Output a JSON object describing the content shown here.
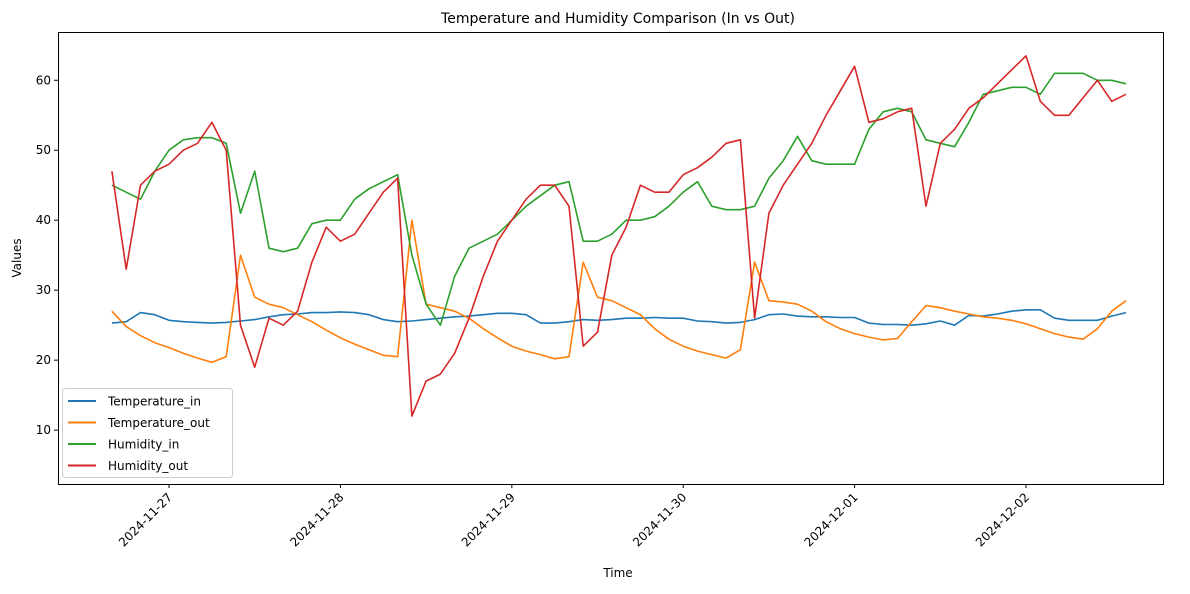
{
  "chart_data": {
    "type": "line",
    "title": "Temperature and Humidity Comparison (In vs Out)",
    "xlabel": "Time",
    "ylabel": "Values",
    "xlim": [
      "2024-11-26T08:27",
      "2024-12-02T19:11"
    ],
    "ylim": [
      2.3,
      66.9
    ],
    "x_ticks": [
      "2024-11-27",
      "2024-11-28",
      "2024-11-29",
      "2024-11-30",
      "2024-12-01",
      "2024-12-02"
    ],
    "y_ticks": [
      10,
      20,
      30,
      40,
      50,
      60
    ],
    "grid": false,
    "legend_position": "lower-left",
    "x": [
      "2024-11-26T16:00",
      "2024-11-26T18:00",
      "2024-11-26T20:00",
      "2024-11-26T22:00",
      "2024-11-27T00:00",
      "2024-11-27T02:00",
      "2024-11-27T04:00",
      "2024-11-27T06:00",
      "2024-11-27T08:00",
      "2024-11-27T10:00",
      "2024-11-27T12:00",
      "2024-11-27T14:00",
      "2024-11-27T16:00",
      "2024-11-27T18:00",
      "2024-11-27T20:00",
      "2024-11-27T22:00",
      "2024-11-28T00:00",
      "2024-11-28T02:00",
      "2024-11-28T04:00",
      "2024-11-28T06:00",
      "2024-11-28T08:00",
      "2024-11-28T10:00",
      "2024-11-28T12:00",
      "2024-11-28T14:00",
      "2024-11-28T16:00",
      "2024-11-28T18:00",
      "2024-11-28T20:00",
      "2024-11-28T22:00",
      "2024-11-29T00:00",
      "2024-11-29T02:00",
      "2024-11-29T04:00",
      "2024-11-29T06:00",
      "2024-11-29T08:00",
      "2024-11-29T10:00",
      "2024-11-29T12:00",
      "2024-11-29T14:00",
      "2024-11-29T16:00",
      "2024-11-29T18:00",
      "2024-11-29T20:00",
      "2024-11-29T22:00",
      "2024-11-30T00:00",
      "2024-11-30T02:00",
      "2024-11-30T04:00",
      "2024-11-30T06:00",
      "2024-11-30T08:00",
      "2024-11-30T10:00",
      "2024-11-30T12:00",
      "2024-11-30T14:00",
      "2024-11-30T16:00",
      "2024-11-30T18:00",
      "2024-11-30T20:00",
      "2024-11-30T22:00",
      "2024-12-01T00:00",
      "2024-12-01T02:00",
      "2024-12-01T04:00",
      "2024-12-01T06:00",
      "2024-12-01T08:00",
      "2024-12-01T10:00",
      "2024-12-01T12:00",
      "2024-12-01T14:00",
      "2024-12-01T16:00",
      "2024-12-01T18:00",
      "2024-12-01T20:00",
      "2024-12-01T22:00",
      "2024-12-02T00:00",
      "2024-12-02T02:00",
      "2024-12-02T04:00",
      "2024-12-02T06:00",
      "2024-12-02T08:00",
      "2024-12-02T10:00",
      "2024-12-02T12:00",
      "2024-12-02T14:00"
    ],
    "series": [
      {
        "name": "Temperature_in",
        "color": "#1f77b4",
        "values": [
          25.3,
          25.5,
          26.8,
          26.5,
          25.7,
          25.5,
          25.4,
          25.3,
          25.4,
          25.6,
          25.8,
          26.2,
          26.5,
          26.6,
          26.8,
          26.8,
          26.9,
          26.8,
          26.5,
          25.8,
          25.5,
          25.6,
          25.8,
          26.0,
          26.2,
          26.3,
          26.5,
          26.7,
          26.7,
          26.5,
          25.3,
          25.3,
          25.5,
          25.8,
          25.7,
          25.8,
          26.0,
          26.0,
          26.1,
          26.0,
          26.0,
          25.6,
          25.5,
          25.3,
          25.4,
          25.8,
          26.5,
          26.6,
          26.3,
          26.2,
          26.2,
          26.1,
          26.1,
          25.3,
          25.1,
          25.1,
          25.0,
          25.2,
          25.6,
          25.0,
          26.4,
          26.3,
          26.6,
          27.0,
          27.2,
          27.2,
          26.0,
          25.7,
          25.7,
          25.7,
          26.3,
          26.8
        ]
      },
      {
        "name": "Temperature_out",
        "color": "#ff7f0e",
        "values": [
          27.0,
          24.8,
          23.5,
          22.5,
          21.8,
          21.0,
          20.3,
          19.7,
          20.5,
          35.0,
          29.0,
          28.0,
          27.5,
          26.5,
          25.5,
          24.3,
          23.2,
          22.3,
          21.5,
          20.7,
          20.5,
          40.0,
          28.0,
          27.5,
          27.0,
          26.0,
          24.5,
          23.2,
          22.0,
          21.3,
          20.8,
          20.2,
          20.5,
          34.0,
          29.0,
          28.5,
          27.5,
          26.5,
          24.5,
          23.0,
          22.0,
          21.3,
          20.8,
          20.3,
          21.5,
          34.0,
          28.5,
          28.3,
          28.0,
          27.0,
          25.5,
          24.5,
          23.8,
          23.3,
          22.9,
          23.1,
          25.5,
          27.8,
          27.5,
          27.0,
          26.6,
          26.2,
          26.0,
          25.7,
          25.2,
          24.5,
          23.8,
          23.3,
          23.0,
          24.5,
          27.0,
          28.5
        ]
      },
      {
        "name": "Humidity_in",
        "color": "#2ca02c",
        "values": [
          45,
          44,
          43,
          47,
          50,
          51.5,
          51.8,
          51.8,
          51,
          41,
          47,
          36,
          35.5,
          36,
          39.5,
          40,
          40,
          43,
          44.5,
          45.5,
          46.5,
          35,
          28,
          25,
          32,
          36,
          37,
          38,
          40,
          42,
          43.5,
          45,
          45.5,
          37,
          37,
          38,
          40,
          40,
          40.5,
          42,
          44,
          45.5,
          42,
          41.5,
          41.5,
          42,
          46,
          48.5,
          52,
          48.5,
          48,
          48,
          48,
          53,
          55.5,
          56,
          55.5,
          51.5,
          51,
          50.5,
          54,
          58,
          58.5,
          59,
          59,
          58,
          61,
          61,
          61,
          60,
          60,
          59.5
        ]
      },
      {
        "name": "Humidity_out",
        "color": "#d62728",
        "values": [
          47,
          33,
          45,
          47,
          48,
          50,
          51,
          54,
          50,
          25,
          19,
          26,
          25,
          27,
          34,
          39,
          37,
          38,
          41,
          44,
          46,
          12,
          17,
          18,
          21,
          26,
          32,
          37,
          40,
          43,
          45,
          45,
          42,
          22,
          24,
          35,
          39,
          45,
          44,
          44,
          46.5,
          47.5,
          49,
          51,
          51.5,
          26,
          41,
          45,
          48,
          51,
          55,
          58.5,
          62,
          54,
          54.5,
          55.5,
          56,
          42,
          51,
          53,
          56,
          57.5,
          59.5,
          61.5,
          63.5,
          57,
          55,
          55,
          57.5,
          60,
          57,
          58
        ]
      }
    ]
  }
}
